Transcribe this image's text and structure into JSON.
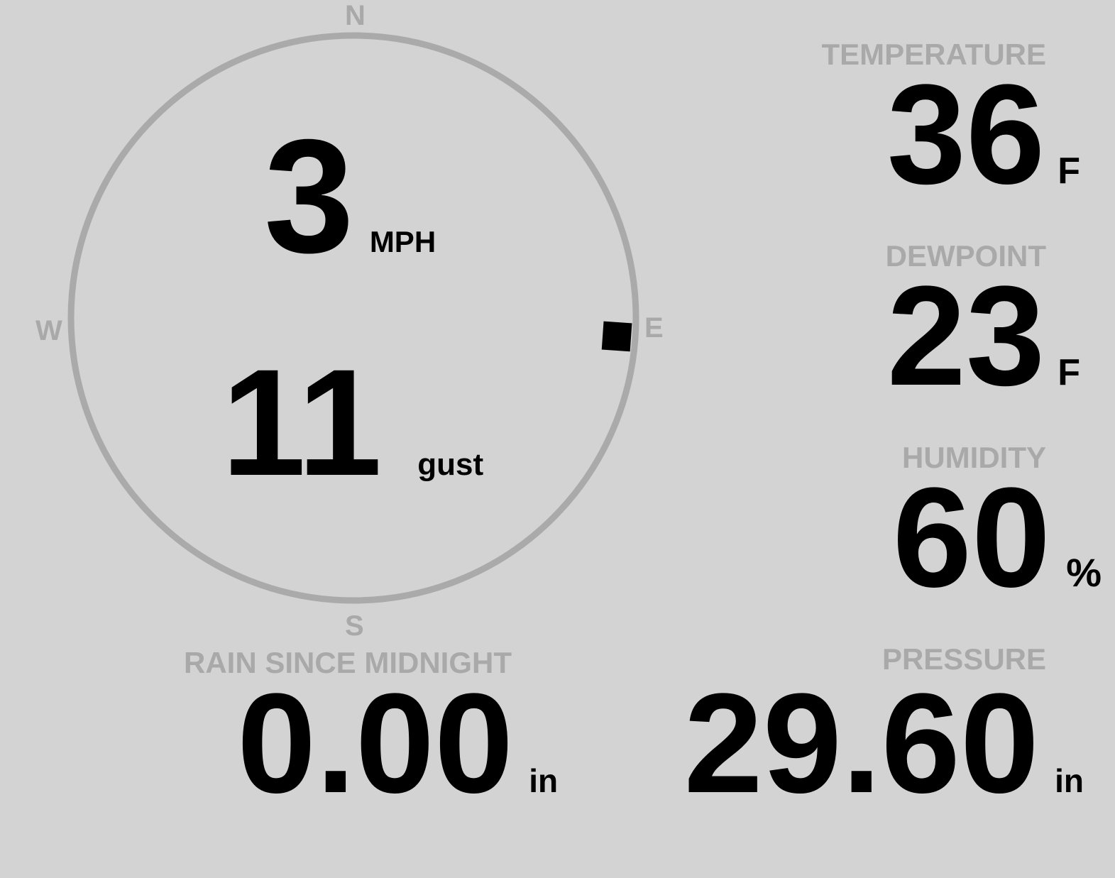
{
  "wind": {
    "speed": "3",
    "speed_unit": "MPH",
    "gust": "11",
    "gust_label": "gust",
    "direction_deg": 94,
    "cardinals": {
      "n": "N",
      "e": "E",
      "s": "S",
      "w": "W"
    }
  },
  "temperature": {
    "label": "TEMPERATURE",
    "value": "36",
    "unit": "F"
  },
  "dewpoint": {
    "label": "DEWPOINT",
    "value": "23",
    "unit": "F"
  },
  "humidity": {
    "label": "HUMIDITY",
    "value": "60",
    "unit": "%"
  },
  "rain": {
    "label": "RAIN SINCE MIDNIGHT",
    "value": "0.00",
    "unit": "in"
  },
  "pressure": {
    "label": "PRESSURE",
    "value": "29.60",
    "unit": "in"
  },
  "colors": {
    "background": "#d3d3d3",
    "label": "#a9a9a9",
    "ring": "#aaaaaa",
    "value": "#000000"
  }
}
